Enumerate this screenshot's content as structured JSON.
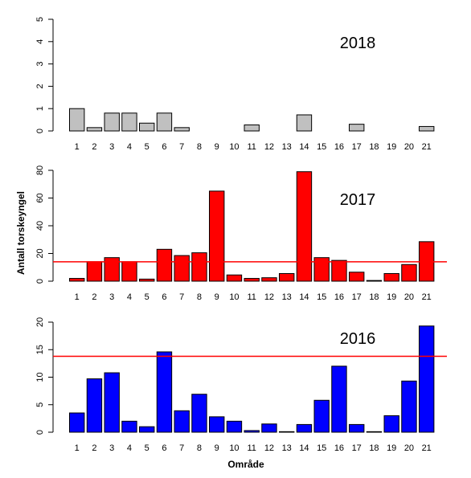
{
  "ylabel": "Antall torskeyngel",
  "xlabel": "Område",
  "chart_data": [
    {
      "type": "bar",
      "title": "2018",
      "color": "#c0c0c0",
      "categories": [
        "1",
        "2",
        "3",
        "4",
        "5",
        "6",
        "7",
        "8",
        "9",
        "10",
        "11",
        "12",
        "13",
        "14",
        "15",
        "16",
        "17",
        "18",
        "19",
        "20",
        "21"
      ],
      "values": [
        1.0,
        0.15,
        0.8,
        0.8,
        0.35,
        0.8,
        0.15,
        0,
        0,
        0,
        0.27,
        0,
        0,
        0.72,
        0,
        0,
        0.3,
        0,
        0,
        0,
        0.2
      ],
      "ylim": [
        0,
        5
      ],
      "yticks": [
        0,
        1,
        2,
        3,
        4,
        5
      ],
      "reference_line": null
    },
    {
      "type": "bar",
      "title": "2017",
      "color": "#ff0000",
      "categories": [
        "1",
        "2",
        "3",
        "4",
        "5",
        "6",
        "7",
        "8",
        "9",
        "10",
        "11",
        "12",
        "13",
        "14",
        "15",
        "16",
        "17",
        "18",
        "19",
        "20",
        "21"
      ],
      "values": [
        2,
        14,
        17,
        14,
        1.5,
        23,
        18.5,
        20.5,
        65,
        4.5,
        2,
        2.5,
        5.5,
        79,
        17,
        15,
        6.5,
        0.5,
        5.5,
        12,
        28.5
      ],
      "ylim": [
        0,
        80
      ],
      "yticks": [
        0,
        20,
        40,
        60,
        80
      ],
      "reference_line": {
        "value": 14,
        "color": "#ff0000"
      }
    },
    {
      "type": "bar",
      "title": "2016",
      "color": "#0000ff",
      "categories": [
        "1",
        "2",
        "3",
        "4",
        "5",
        "6",
        "7",
        "8",
        "9",
        "10",
        "11",
        "12",
        "13",
        "14",
        "15",
        "16",
        "17",
        "18",
        "19",
        "20",
        "21"
      ],
      "values": [
        3.5,
        9.7,
        10.8,
        2,
        1,
        14.6,
        3.9,
        6.9,
        2.8,
        2,
        0.3,
        1.5,
        0.1,
        1.4,
        5.8,
        12,
        1.4,
        0.1,
        3,
        9.3,
        19.3
      ],
      "ylim": [
        0,
        20
      ],
      "yticks": [
        0,
        5,
        10,
        15,
        20
      ],
      "reference_line": {
        "value": 13.8,
        "color": "#ff0000"
      }
    }
  ]
}
